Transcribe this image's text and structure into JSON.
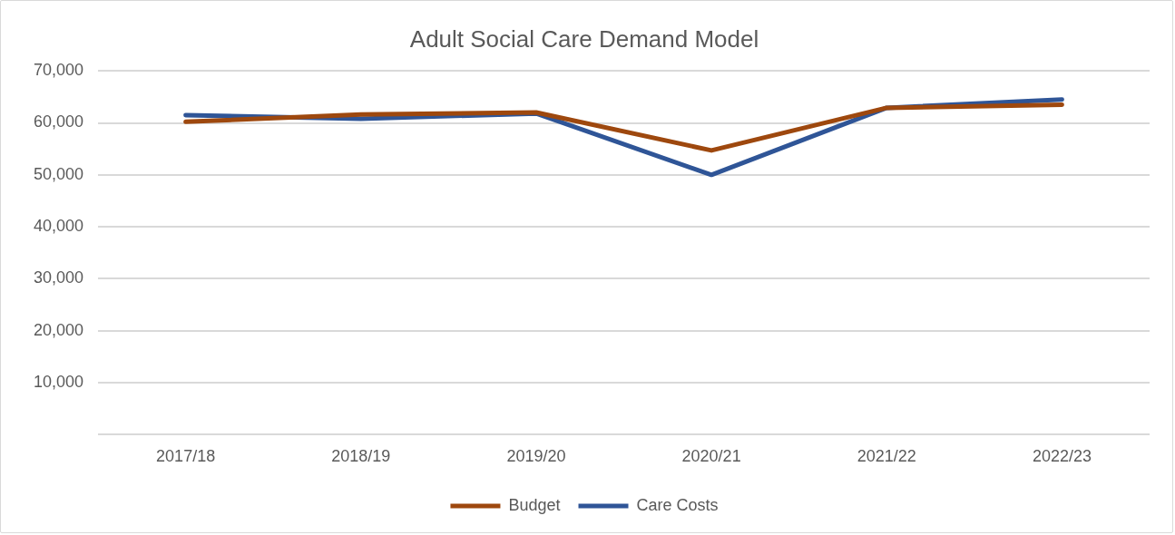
{
  "chart_data": {
    "type": "line",
    "title": "Adult Social Care Demand Model",
    "categories": [
      "2017/18",
      "2018/19",
      "2019/20",
      "2020/21",
      "2021/22",
      "2022/23"
    ],
    "series": [
      {
        "name": "Budget",
        "color": "#9e480e",
        "values": [
          60200,
          61600,
          62000,
          54700,
          62900,
          63500
        ]
      },
      {
        "name": "Care Costs",
        "color": "#2f5597",
        "values": [
          61500,
          60800,
          61800,
          50000,
          62900,
          64500
        ]
      }
    ],
    "ylim": [
      0,
      70000
    ],
    "yticks": [
      {
        "value": 0,
        "label": null
      },
      {
        "value": 10000,
        "label": "10,000"
      },
      {
        "value": 20000,
        "label": "20,000"
      },
      {
        "value": 30000,
        "label": "30,000"
      },
      {
        "value": 40000,
        "label": "40,000"
      },
      {
        "value": 50000,
        "label": "50,000"
      },
      {
        "value": 60000,
        "label": "60,000"
      },
      {
        "value": 70000,
        "label": "70,000"
      }
    ],
    "grid": "y",
    "legend": "bottom",
    "marker": "none",
    "line_style": "solid"
  }
}
